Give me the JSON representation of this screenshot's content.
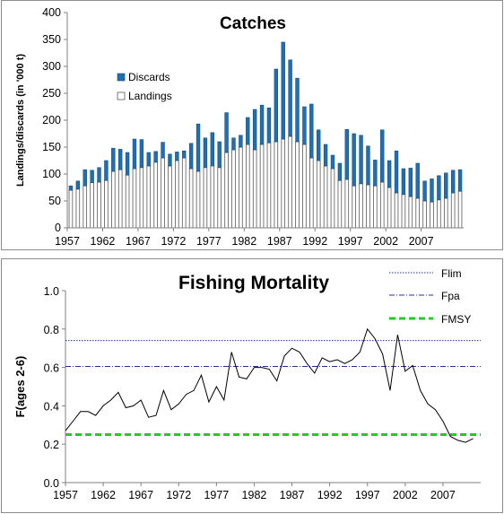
{
  "colors": {
    "discards": "#1f6fb4",
    "discards_edge": "#154e80",
    "landings_fill": "#ffffff",
    "landings_edge": "#595959",
    "flim": "#1f2f9c",
    "fpa": "#1f2f9c",
    "fmsy": "#22cc22",
    "f_line": "#000000"
  },
  "chart_data": [
    {
      "type": "bar",
      "stacked": true,
      "title": "Catches",
      "ylabel": "Landings/discards (in '000 t)",
      "ylim": [
        0,
        400
      ],
      "yticks": [
        0,
        50,
        100,
        150,
        200,
        250,
        300,
        350,
        400
      ],
      "xtick_labels": [
        "1957",
        "1962",
        "1967",
        "1972",
        "1977",
        "1982",
        "1987",
        "1992",
        "1997",
        "2002",
        "2007"
      ],
      "legend_position": "upper-left",
      "categories": [
        1957,
        1958,
        1959,
        1960,
        1961,
        1962,
        1963,
        1964,
        1965,
        1966,
        1967,
        1968,
        1969,
        1970,
        1971,
        1972,
        1973,
        1974,
        1975,
        1976,
        1977,
        1978,
        1979,
        1980,
        1981,
        1982,
        1983,
        1984,
        1985,
        1986,
        1987,
        1988,
        1989,
        1990,
        1991,
        1992,
        1993,
        1994,
        1995,
        1996,
        1997,
        1998,
        1999,
        2000,
        2001,
        2002,
        2003,
        2004,
        2005,
        2006,
        2007,
        2008,
        2009,
        2010,
        2011,
        2012
      ],
      "series": [
        {
          "name": "Landings",
          "values": [
            70,
            72,
            78,
            84,
            85,
            88,
            105,
            108,
            98,
            110,
            112,
            115,
            122,
            130,
            115,
            125,
            130,
            110,
            105,
            112,
            115,
            112,
            140,
            145,
            150,
            155,
            145,
            155,
            158,
            160,
            165,
            170,
            160,
            155,
            130,
            125,
            115,
            110,
            88,
            90,
            78,
            82,
            80,
            78,
            85,
            75,
            65,
            62,
            58,
            55,
            50,
            48,
            52,
            55,
            65,
            68
          ]
        },
        {
          "name": "Discards",
          "values": [
            8,
            15,
            30,
            23,
            27,
            37,
            43,
            38,
            42,
            55,
            52,
            25,
            20,
            29,
            22,
            16,
            13,
            47,
            88,
            55,
            62,
            48,
            74,
            22,
            22,
            50,
            75,
            73,
            65,
            135,
            180,
            142,
            118,
            70,
            100,
            57,
            40,
            25,
            32,
            93,
            97,
            90,
            72,
            48,
            97,
            50,
            78,
            48,
            53,
            65,
            37,
            43,
            45,
            47,
            42,
            40
          ]
        }
      ]
    },
    {
      "type": "line",
      "title": "Fishing Mortality",
      "ylabel": "F(ages 2-6)",
      "ylim": [
        0.0,
        1.0
      ],
      "yticks": [
        "0.0",
        "0.2",
        "0.4",
        "0.6",
        "0.8",
        "1.0"
      ],
      "xtick_labels": [
        "1957",
        "1962",
        "1967",
        "1972",
        "1977",
        "1982",
        "1987",
        "1992",
        "1997",
        "2002",
        "2007"
      ],
      "x": [
        1957,
        1958,
        1959,
        1960,
        1961,
        1962,
        1963,
        1964,
        1965,
        1966,
        1967,
        1968,
        1969,
        1970,
        1971,
        1972,
        1973,
        1974,
        1975,
        1976,
        1977,
        1978,
        1979,
        1980,
        1981,
        1982,
        1983,
        1984,
        1985,
        1986,
        1987,
        1988,
        1989,
        1990,
        1991,
        1992,
        1993,
        1994,
        1995,
        1996,
        1997,
        1998,
        1999,
        2000,
        2001,
        2002,
        2003,
        2004,
        2005,
        2006,
        2007,
        2008,
        2009,
        2010,
        2011
      ],
      "series": [
        {
          "name": "F",
          "values": [
            0.27,
            0.32,
            0.37,
            0.37,
            0.35,
            0.4,
            0.43,
            0.47,
            0.39,
            0.4,
            0.43,
            0.34,
            0.35,
            0.48,
            0.38,
            0.41,
            0.46,
            0.48,
            0.56,
            0.42,
            0.5,
            0.43,
            0.68,
            0.55,
            0.54,
            0.6,
            0.6,
            0.59,
            0.53,
            0.66,
            0.7,
            0.68,
            0.62,
            0.57,
            0.65,
            0.63,
            0.64,
            0.62,
            0.64,
            0.68,
            0.8,
            0.75,
            0.67,
            0.48,
            0.77,
            0.58,
            0.61,
            0.48,
            0.41,
            0.38,
            0.32,
            0.24,
            0.22,
            0.21,
            0.23
          ]
        }
      ],
      "reference_lines": [
        {
          "name": "Flim",
          "value": 0.74,
          "style": "dotted"
        },
        {
          "name": "Fpa",
          "value": 0.605,
          "style": "dash-dot"
        },
        {
          "name": "FMSY",
          "value": 0.25,
          "style": "dashed"
        }
      ],
      "legend_position": "upper-right"
    }
  ]
}
